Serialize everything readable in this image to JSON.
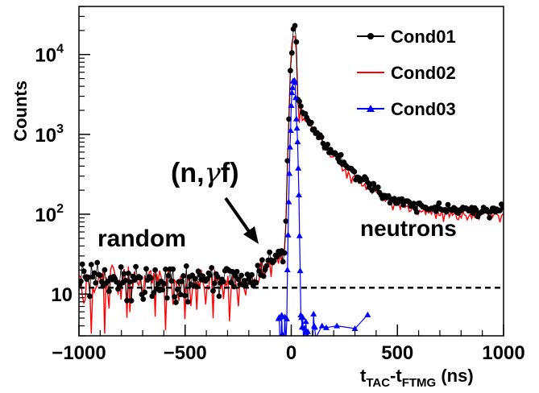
{
  "chart_data": {
    "type": "line",
    "xlabel": {
      "main": "t",
      "sub1": "TAC",
      "mid": "-t",
      "sub2": "FTMG",
      "unit": " (ns)"
    },
    "ylabel": "Counts",
    "xlim": [
      -1000,
      1000
    ],
    "ylim": [
      3,
      40000
    ],
    "yscale": "log",
    "x_ticks": [
      "−1000",
      "−500",
      "0",
      "500",
      "1000"
    ],
    "y_ticks": [
      {
        "value": 10,
        "label": "10"
      },
      {
        "value": 100,
        "label": "10",
        "exp": "2"
      },
      {
        "value": 1000,
        "label": "10",
        "exp": "3"
      },
      {
        "value": 10000,
        "label": "10",
        "exp": "4"
      }
    ],
    "background_level": 12,
    "series": [
      {
        "name": "Cond01",
        "color": "#000000",
        "marker": "circle"
      },
      {
        "name": "Cond02",
        "color": "#ff0000",
        "marker": "none"
      },
      {
        "name": "Cond03",
        "color": "#0000ff",
        "marker": "triangle"
      }
    ],
    "annotations": {
      "random": "random",
      "neutrons": "neutrons",
      "ngf_open": "(n,",
      "ngf_gamma": "γ",
      "ngf_close": "f)"
    }
  }
}
